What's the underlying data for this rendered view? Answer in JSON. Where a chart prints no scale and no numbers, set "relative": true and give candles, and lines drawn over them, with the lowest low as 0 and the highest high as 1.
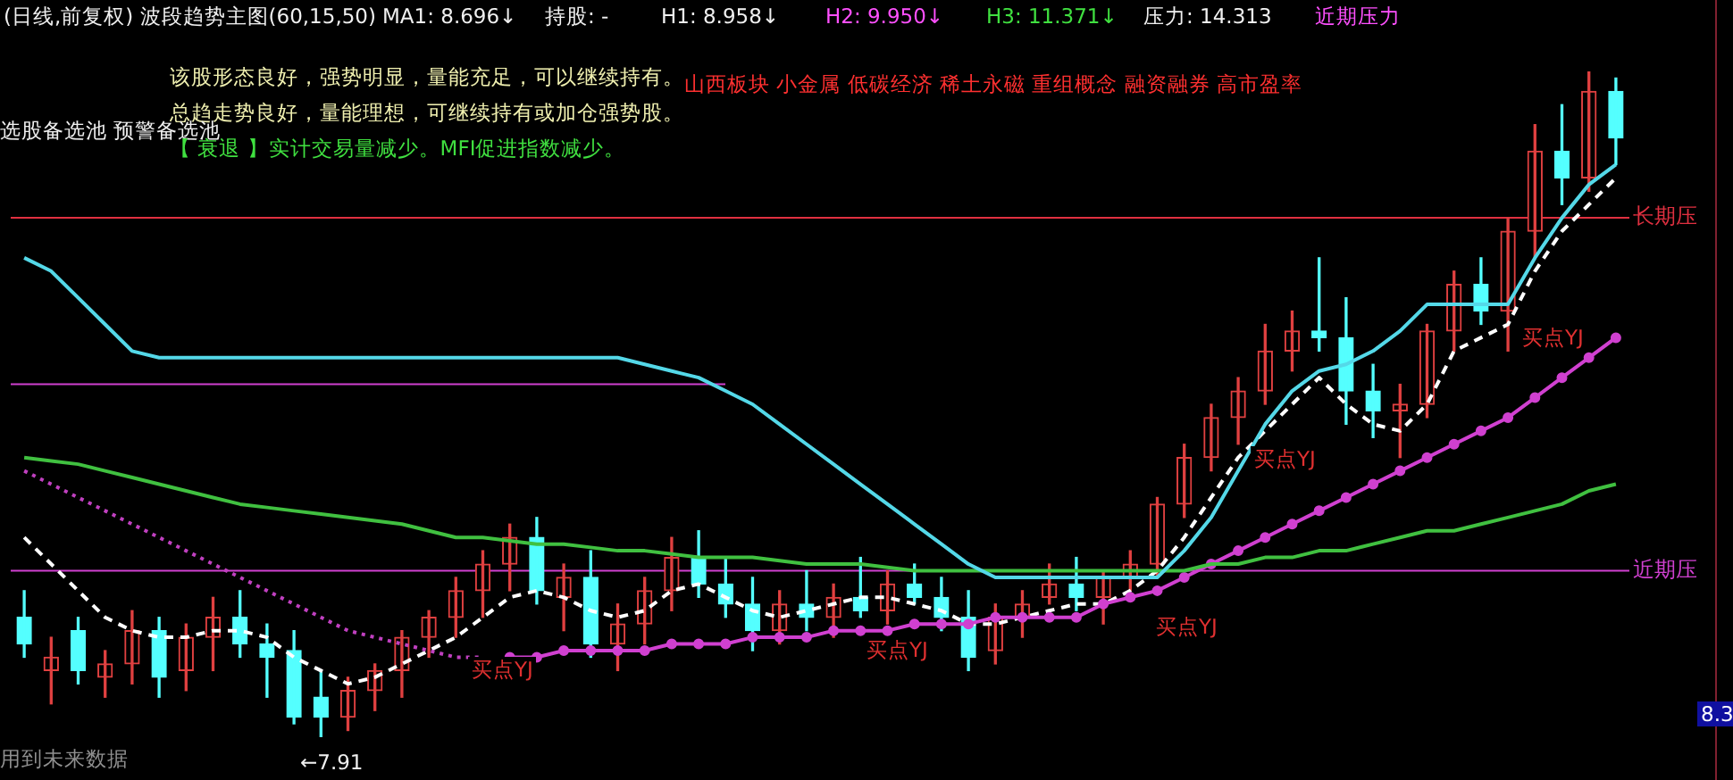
{
  "chart_data": {
    "type": "candlestick",
    "title": "(日线,前复权) 波段趋势主图(60,15,50)",
    "relative": true,
    "legend": false,
    "categories": [
      null,
      null,
      null,
      null,
      null,
      null,
      null,
      null,
      null,
      null,
      null,
      null,
      null,
      null,
      null,
      null,
      null,
      null,
      null,
      null,
      null,
      null,
      null,
      null,
      null,
      null,
      null,
      null,
      null,
      null,
      null,
      null,
      null,
      null,
      null,
      null,
      null,
      null,
      null,
      null,
      null,
      null,
      null,
      null,
      null,
      null,
      null,
      null,
      null,
      null,
      null,
      null,
      null,
      null,
      null,
      null,
      null,
      null,
      null,
      null
    ],
    "ohlc": [
      [
        0.18,
        0.22,
        0.12,
        0.14
      ],
      [
        0.1,
        0.15,
        0.05,
        0.12
      ],
      [
        0.16,
        0.18,
        0.08,
        0.1
      ],
      [
        0.09,
        0.13,
        0.06,
        0.11
      ],
      [
        0.11,
        0.19,
        0.08,
        0.16
      ],
      [
        0.16,
        0.18,
        0.06,
        0.09
      ],
      [
        0.1,
        0.17,
        0.07,
        0.15
      ],
      [
        0.15,
        0.21,
        0.1,
        0.18
      ],
      [
        0.18,
        0.22,
        0.12,
        0.14
      ],
      [
        0.14,
        0.17,
        0.06,
        0.12
      ],
      [
        0.13,
        0.16,
        0.02,
        0.03
      ],
      [
        0.06,
        0.1,
        0.0,
        0.03
      ],
      [
        0.03,
        0.09,
        0.01,
        0.07
      ],
      [
        0.07,
        0.11,
        0.04,
        0.1
      ],
      [
        0.1,
        0.16,
        0.06,
        0.15
      ],
      [
        0.15,
        0.19,
        0.12,
        0.18
      ],
      [
        0.18,
        0.24,
        0.15,
        0.22
      ],
      [
        0.22,
        0.28,
        0.18,
        0.26
      ],
      [
        0.26,
        0.32,
        0.22,
        0.3
      ],
      [
        0.3,
        0.33,
        0.2,
        0.22
      ],
      [
        0.21,
        0.26,
        0.16,
        0.24
      ],
      [
        0.24,
        0.28,
        0.12,
        0.14
      ],
      [
        0.14,
        0.2,
        0.1,
        0.17
      ],
      [
        0.17,
        0.24,
        0.14,
        0.22
      ],
      [
        0.22,
        0.3,
        0.19,
        0.27
      ],
      [
        0.27,
        0.31,
        0.21,
        0.23
      ],
      [
        0.23,
        0.27,
        0.18,
        0.2
      ],
      [
        0.2,
        0.24,
        0.13,
        0.16
      ],
      [
        0.16,
        0.22,
        0.14,
        0.2
      ],
      [
        0.2,
        0.25,
        0.16,
        0.18
      ],
      [
        0.18,
        0.23,
        0.15,
        0.21
      ],
      [
        0.21,
        0.27,
        0.18,
        0.19
      ],
      [
        0.19,
        0.25,
        0.17,
        0.23
      ],
      [
        0.23,
        0.26,
        0.2,
        0.21
      ],
      [
        0.21,
        0.24,
        0.16,
        0.18
      ],
      [
        0.18,
        0.22,
        0.1,
        0.12
      ],
      [
        0.13,
        0.2,
        0.11,
        0.18
      ],
      [
        0.18,
        0.22,
        0.15,
        0.2
      ],
      [
        0.21,
        0.26,
        0.2,
        0.23
      ],
      [
        0.23,
        0.27,
        0.19,
        0.21
      ],
      [
        0.21,
        0.25,
        0.17,
        0.24
      ],
      [
        0.24,
        0.28,
        0.22,
        0.26
      ],
      [
        0.26,
        0.36,
        0.24,
        0.35
      ],
      [
        0.35,
        0.44,
        0.33,
        0.42
      ],
      [
        0.42,
        0.5,
        0.4,
        0.48
      ],
      [
        0.48,
        0.54,
        0.44,
        0.52
      ],
      [
        0.52,
        0.62,
        0.5,
        0.58
      ],
      [
        0.58,
        0.64,
        0.55,
        0.61
      ],
      [
        0.61,
        0.72,
        0.58,
        0.6
      ],
      [
        0.6,
        0.66,
        0.47,
        0.52
      ],
      [
        0.52,
        0.56,
        0.45,
        0.49
      ],
      [
        0.49,
        0.53,
        0.42,
        0.5
      ],
      [
        0.5,
        0.62,
        0.48,
        0.61
      ],
      [
        0.61,
        0.7,
        0.58,
        0.68
      ],
      [
        0.68,
        0.72,
        0.62,
        0.64
      ],
      [
        0.64,
        0.78,
        0.58,
        0.76
      ],
      [
        0.76,
        0.92,
        0.72,
        0.88
      ],
      [
        0.88,
        0.95,
        0.8,
        0.84
      ],
      [
        0.84,
        1.0,
        0.82,
        0.97
      ],
      [
        0.97,
        0.99,
        0.86,
        0.9
      ]
    ],
    "series": [
      {
        "type": "line",
        "color": "#54d8e8",
        "values": [
          0.72,
          0.7,
          0.66,
          0.62,
          0.58,
          0.57,
          0.57,
          0.57,
          0.57,
          0.57,
          0.57,
          0.57,
          0.57,
          0.57,
          0.57,
          0.57,
          0.57,
          0.57,
          0.57,
          0.57,
          0.57,
          0.57,
          0.57,
          0.56,
          0.55,
          0.54,
          0.52,
          0.5,
          0.47,
          0.44,
          0.41,
          0.38,
          0.35,
          0.32,
          0.29,
          0.26,
          0.24,
          0.24,
          0.24,
          0.24,
          0.24,
          0.24,
          0.24,
          0.28,
          0.33,
          0.4,
          0.47,
          0.52,
          0.55,
          0.56,
          0.58,
          0.61,
          0.65,
          0.65,
          0.65,
          0.65,
          0.72,
          0.78,
          0.83,
          0.86
        ]
      },
      {
        "type": "line",
        "color": "#40c040",
        "values": [
          0.42,
          0.415,
          0.41,
          0.4,
          0.39,
          0.38,
          0.37,
          0.36,
          0.35,
          0.345,
          0.34,
          0.335,
          0.33,
          0.325,
          0.32,
          0.31,
          0.3,
          0.3,
          0.295,
          0.29,
          0.29,
          0.285,
          0.28,
          0.28,
          0.275,
          0.27,
          0.27,
          0.27,
          0.265,
          0.26,
          0.26,
          0.26,
          0.255,
          0.25,
          0.25,
          0.25,
          0.25,
          0.25,
          0.25,
          0.25,
          0.25,
          0.25,
          0.25,
          0.25,
          0.26,
          0.26,
          0.27,
          0.27,
          0.28,
          0.28,
          0.29,
          0.3,
          0.31,
          0.31,
          0.32,
          0.33,
          0.34,
          0.35,
          0.37,
          0.38
        ]
      },
      {
        "type": "line",
        "color": "#c040c0",
        "line_style": "dotted",
        "marker": "none",
        "values": [
          0.4,
          0.38,
          0.36,
          0.34,
          0.32,
          0.3,
          0.28,
          0.26,
          0.24,
          0.22,
          0.2,
          0.18,
          0.16,
          0.15,
          0.14,
          0.13,
          0.12,
          0.12,
          null,
          null,
          null,
          null,
          null,
          null,
          null,
          null,
          null,
          null,
          null,
          null,
          null,
          null,
          null,
          null,
          null,
          null,
          null,
          null,
          null,
          null,
          null,
          null,
          null,
          null,
          null,
          null,
          null,
          null,
          null,
          null,
          null,
          null,
          null,
          null,
          null,
          null,
          null,
          null,
          null,
          null
        ]
      },
      {
        "type": "line",
        "color": "#d040d0",
        "marker": "circle",
        "values": [
          null,
          null,
          null,
          null,
          null,
          null,
          null,
          null,
          null,
          null,
          null,
          null,
          null,
          null,
          null,
          null,
          null,
          null,
          0.12,
          0.12,
          0.13,
          0.13,
          0.13,
          0.13,
          0.14,
          0.14,
          0.14,
          0.15,
          0.15,
          0.15,
          0.16,
          0.16,
          0.16,
          0.17,
          0.17,
          0.17,
          0.18,
          0.18,
          0.18,
          0.18,
          0.2,
          0.21,
          0.22,
          0.24,
          0.26,
          0.28,
          0.3,
          0.32,
          0.34,
          0.36,
          0.38,
          0.4,
          0.42,
          0.44,
          0.46,
          0.48,
          0.51,
          0.54,
          0.57,
          0.6
        ]
      },
      {
        "type": "line",
        "color": "#ffffff",
        "line_style": "dashed",
        "marker": "none",
        "values": [
          0.3,
          0.26,
          0.22,
          0.18,
          0.16,
          0.15,
          0.15,
          0.16,
          0.16,
          0.15,
          0.12,
          0.1,
          0.08,
          0.09,
          0.11,
          0.13,
          0.15,
          0.18,
          0.21,
          0.22,
          0.21,
          0.19,
          0.18,
          0.19,
          0.22,
          0.23,
          0.21,
          0.19,
          0.18,
          0.19,
          0.2,
          0.21,
          0.21,
          0.2,
          0.19,
          0.17,
          0.17,
          0.18,
          0.19,
          0.2,
          0.2,
          0.22,
          0.25,
          0.3,
          0.36,
          0.42,
          0.46,
          0.5,
          0.54,
          0.5,
          0.47,
          0.46,
          0.5,
          0.58,
          0.6,
          0.62,
          0.7,
          0.76,
          0.8,
          0.84
        ]
      }
    ],
    "ref_lines": [
      {
        "axis": "y",
        "value": 0.25,
        "label": "近期压",
        "color": "#d040d0"
      },
      {
        "axis": "y",
        "value": 0.78,
        "label": "长期压",
        "color": "#e03040"
      },
      {
        "axis": "y",
        "value": 0.53,
        "color": "#d040d0"
      }
    ],
    "annotations": [
      "MA1: 8.696↓",
      "持股: -",
      "H1: 8.958↓",
      "H2: 9.950↓",
      "H3: 11.371↓",
      "压力: 14.313",
      "近期压力",
      "该股形态良好，强势明显，量能充足，可以继续持有。",
      "山西板块 小金属 低碳经济 稀土永磁 重组概念 融资融券 高市盈率",
      "总趋走势良好，量能理想，可继续持有或加仓强势股。",
      "选股备选池 预警备选池",
      "【 衰退 】实计交易量减少。MFI促进指数减少。",
      "用到未来数据",
      "←7.91",
      "8.3",
      "买点YJ",
      "买点YJ",
      "买点YJ",
      "买点YJ",
      "买点YJ"
    ]
  }
}
